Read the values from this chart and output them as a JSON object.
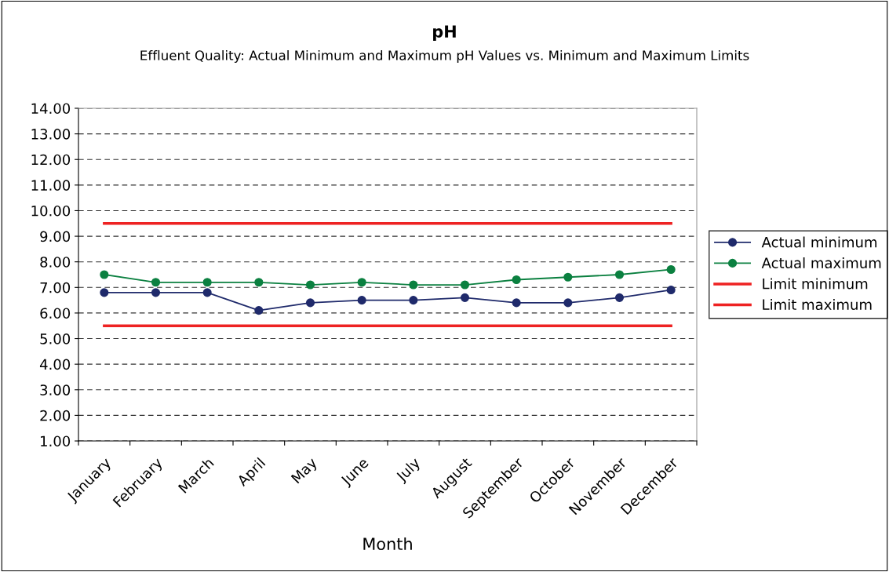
{
  "chart_data": {
    "type": "line",
    "title": "pH",
    "subtitle": "Effluent Quality: Actual Minimum and Maximum pH Values vs. Minimum and Maximum Limits",
    "xlabel": "Month",
    "categories": [
      "January",
      "February",
      "March",
      "April",
      "May",
      "June",
      "July",
      "August",
      "September",
      "October",
      "November",
      "December"
    ],
    "series": [
      {
        "name": "Actual minimum",
        "color": "#1f2a6b",
        "marker": "circle",
        "values": [
          6.8,
          6.8,
          6.8,
          6.1,
          6.4,
          6.5,
          6.5,
          6.6,
          6.4,
          6.4,
          6.6,
          6.9
        ]
      },
      {
        "name": "Actual maximum",
        "color": "#0b8040",
        "marker": "circle",
        "values": [
          7.5,
          7.2,
          7.2,
          7.2,
          7.1,
          7.2,
          7.1,
          7.1,
          7.3,
          7.4,
          7.5,
          7.7
        ]
      },
      {
        "name": "Limit minimum",
        "color": "#ee2222",
        "marker": "none",
        "values": [
          5.5,
          5.5,
          5.5,
          5.5,
          5.5,
          5.5,
          5.5,
          5.5,
          5.5,
          5.5,
          5.5,
          5.5
        ]
      },
      {
        "name": "Limit maximum",
        "color": "#ee2222",
        "marker": "none",
        "values": [
          9.5,
          9.5,
          9.5,
          9.5,
          9.5,
          9.5,
          9.5,
          9.5,
          9.5,
          9.5,
          9.5,
          9.5
        ]
      }
    ],
    "ylim": [
      1,
      14
    ],
    "yticks": [
      {
        "value": 1,
        "label": "1.00"
      },
      {
        "value": 2,
        "label": "2.00"
      },
      {
        "value": 3,
        "label": "3.00"
      },
      {
        "value": 4,
        "label": "4.00"
      },
      {
        "value": 5,
        "label": "5.00"
      },
      {
        "value": 6,
        "label": "6.00"
      },
      {
        "value": 7,
        "label": "7.00"
      },
      {
        "value": 8,
        "label": "8.00"
      },
      {
        "value": 9,
        "label": "9.00"
      },
      {
        "value": 10,
        "label": "10.00"
      },
      {
        "value": 11,
        "label": "11.00"
      },
      {
        "value": 12,
        "label": "12.00"
      },
      {
        "value": 13,
        "label": "13.00"
      },
      {
        "value": 14,
        "label": "14.00"
      }
    ],
    "grid": "y",
    "legend": "right",
    "line_style": "solid"
  }
}
